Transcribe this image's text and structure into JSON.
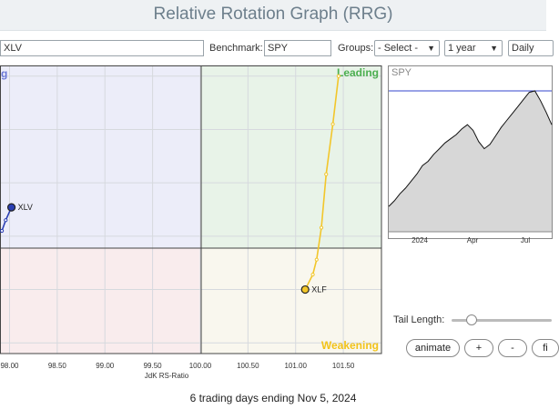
{
  "title": "Relative Rotation Graph (RRG)",
  "controls": {
    "symbols_value": "XLV",
    "benchmark_label": "Benchmark:",
    "benchmark_value": "SPY",
    "groups_label": "Groups:",
    "groups_value": "- Select -",
    "period_value": "1 year",
    "frequency_value": "Daily"
  },
  "quadrants": {
    "leading": "Leading",
    "weakening": "Weakening",
    "improving_partial": "g"
  },
  "colors": {
    "leading_bg": "#e8f3e8",
    "weakening_bg": "#f9f7ee",
    "lagging_bg": "#f9eced",
    "improving_bg": "#ecedf9",
    "leading_text": "#4caf50",
    "weakening_text": "#f2c31a",
    "improving_text": "#6a78d6",
    "xlv_color": "#2b3fb3",
    "xlf_color": "#f2c62a"
  },
  "chart_data": [
    {
      "type": "scatter",
      "title": "",
      "xlabel": "JdK RS-Ratio",
      "ylabel": "",
      "xlim": [
        97.9,
        101.9
      ],
      "ylim": [
        98.9,
        101.6
      ],
      "x_ticks": [
        "98.00",
        "98.50",
        "99.00",
        "99.50",
        "100.00",
        "100.50",
        "101.00",
        "101.50"
      ],
      "grid": true,
      "series": [
        {
          "name": "XLV",
          "x": [
            97.92,
            97.96,
            98.02
          ],
          "y": [
            100.05,
            100.15,
            100.27
          ],
          "color": "#2b3fb3"
        },
        {
          "name": "XLF",
          "x": [
            101.45,
            101.39,
            101.32,
            101.27,
            101.22,
            101.18,
            101.1
          ],
          "y": [
            101.5,
            101.05,
            100.58,
            100.08,
            99.78,
            99.64,
            99.5
          ],
          "color": "#f2c62a"
        }
      ]
    },
    {
      "type": "area",
      "title": "SPY",
      "x_ticks": [
        "2024",
        "Apr",
        "Jul"
      ],
      "y": [
        0.18,
        0.22,
        0.27,
        0.31,
        0.36,
        0.41,
        0.47,
        0.5,
        0.55,
        0.59,
        0.63,
        0.66,
        0.69,
        0.73,
        0.76,
        0.72,
        0.64,
        0.59,
        0.62,
        0.68,
        0.74,
        0.79,
        0.84,
        0.89,
        0.94,
        0.99,
        1.0,
        0.93,
        0.85,
        0.76
      ],
      "reference_line": 1.0
    }
  ],
  "tail": {
    "label": "Tail Length:",
    "value": 0.2
  },
  "buttons": {
    "animate": "animate",
    "plus": "+",
    "minus": "-",
    "fit": "fi"
  },
  "footer": "6 trading days ending Nov 5, 2024"
}
